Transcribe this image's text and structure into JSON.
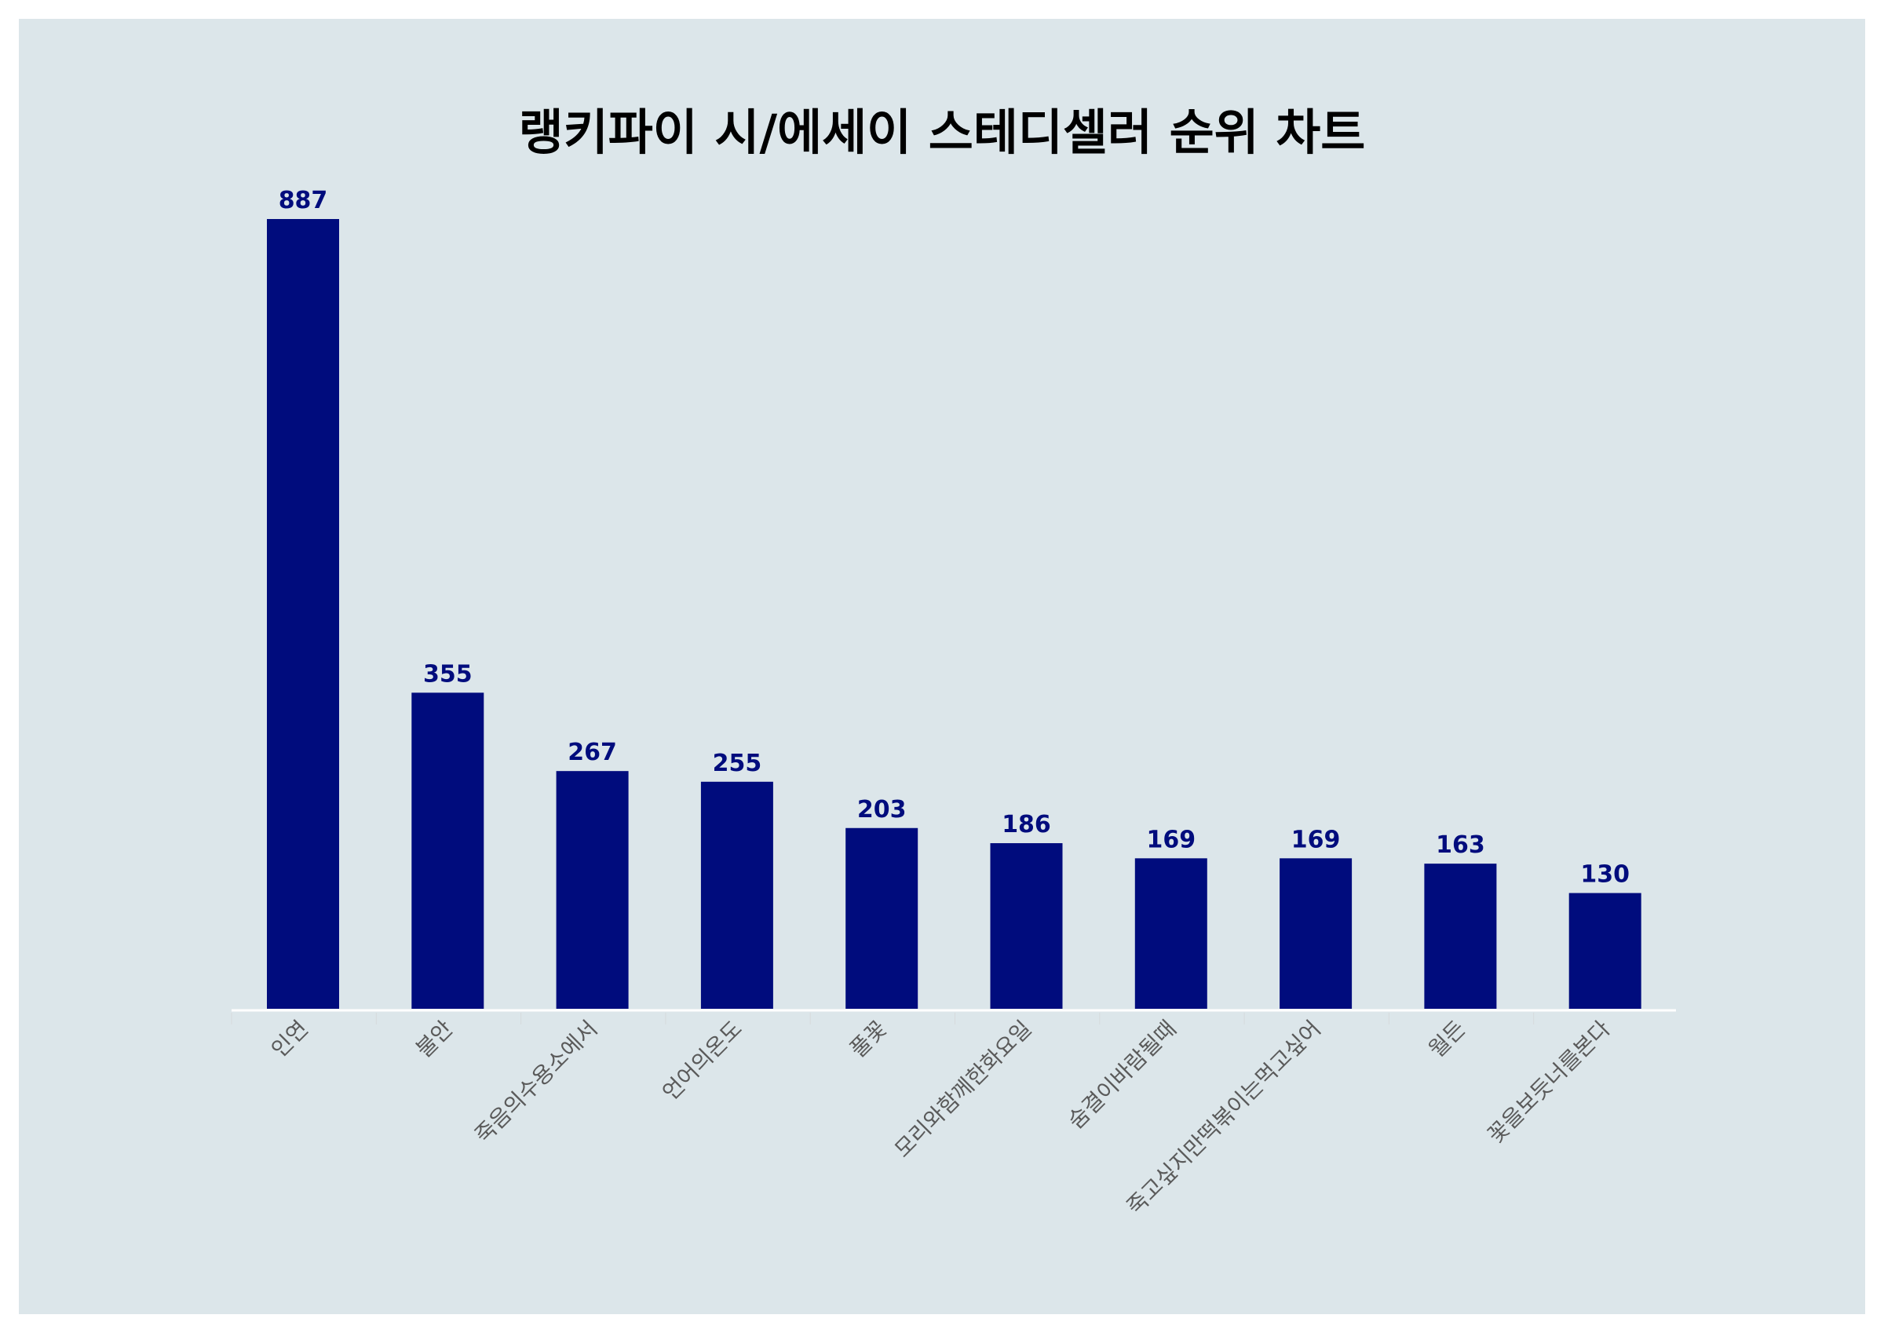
{
  "chart_data": {
    "type": "bar",
    "title": "랭키파이 시/에세이 스테디셀러 순위 차트",
    "categories": [
      "인연",
      "불안",
      "죽음의수용소에서",
      "언어의온도",
      "풀꽃",
      "모리와함께한화요일",
      "숨결이바람될때",
      "죽고싶지만떡볶이는먹고싶어",
      "월든",
      "꽃을보듯너를본다"
    ],
    "values": [
      887,
      355,
      267,
      255,
      203,
      186,
      169,
      169,
      163,
      130
    ],
    "xlabel": "",
    "ylabel": "",
    "ylim": [
      0,
      887
    ],
    "grid": false,
    "legend": "none",
    "data_labels": true,
    "colors": {
      "bar": "#000c7d",
      "label": "#000c7d",
      "background": "#dce6ea",
      "frame": "#ffffff"
    }
  }
}
